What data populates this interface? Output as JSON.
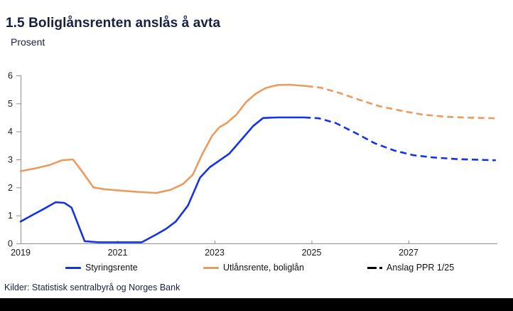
{
  "header": {
    "title": "1.5 Boliglånsrenten anslås å avta",
    "subtitle": "Prosent"
  },
  "source": "Kilder: Statistisk sentralbyrå og Norges Bank",
  "colors": {
    "policy_rate": "#1433e6",
    "lending_rate": "#ec9b5e",
    "forecast_marker": "#000000",
    "heading_text": "#172042",
    "axis": "#8f8f8f",
    "tick_label": "#1a1a1a"
  },
  "legend": [
    {
      "id": "styringsrente",
      "label": "Styringsrente",
      "marker": "solid-line",
      "color": "#1433e6"
    },
    {
      "id": "utlansrente-boliglan",
      "label": "Utlånsrente, boliglån",
      "marker": "solid-line",
      "color": "#ec9b5e"
    },
    {
      "id": "anslag-ppr",
      "label": "Anslag PPR 1/25",
      "marker": "dash-dot",
      "color": "#000000"
    }
  ],
  "chart_data": {
    "type": "line",
    "title": "1.5 Boliglånsrenten anslås å avta",
    "ylabel": "Prosent",
    "xlabel": "",
    "xlim": [
      2019,
      2028.85
    ],
    "ylim": [
      0,
      6
    ],
    "x_ticks": [
      2019,
      2021,
      2023,
      2025,
      2027
    ],
    "y_ticks": [
      0,
      1,
      2,
      3,
      4,
      5,
      6
    ],
    "grid": false,
    "legend_position": "bottom",
    "series": [
      {
        "id": "styringsrente",
        "name": "Styringsrente",
        "style": "solid",
        "color": "#1433e6",
        "points": [
          [
            2019.0,
            0.78
          ],
          [
            2019.25,
            1.02
          ],
          [
            2019.5,
            1.25
          ],
          [
            2019.72,
            1.47
          ],
          [
            2019.9,
            1.45
          ],
          [
            2020.05,
            1.28
          ],
          [
            2020.32,
            0.08
          ],
          [
            2020.6,
            0.04
          ],
          [
            2021.0,
            0.04
          ],
          [
            2021.5,
            0.04
          ],
          [
            2021.8,
            0.32
          ],
          [
            2022.0,
            0.52
          ],
          [
            2022.2,
            0.78
          ],
          [
            2022.45,
            1.35
          ],
          [
            2022.7,
            2.35
          ],
          [
            2022.9,
            2.72
          ],
          [
            2023.1,
            2.96
          ],
          [
            2023.3,
            3.2
          ],
          [
            2023.55,
            3.7
          ],
          [
            2023.8,
            4.2
          ],
          [
            2024.0,
            4.48
          ],
          [
            2024.3,
            4.5
          ],
          [
            2024.85,
            4.5
          ]
        ]
      },
      {
        "id": "styringsrente-anslag",
        "name": "Styringsrente (Anslag PPR 1/25)",
        "style": "dashed",
        "color": "#1433e6",
        "points": [
          [
            2024.85,
            4.5
          ],
          [
            2025.15,
            4.47
          ],
          [
            2025.5,
            4.3
          ],
          [
            2025.9,
            3.95
          ],
          [
            2026.3,
            3.58
          ],
          [
            2026.7,
            3.32
          ],
          [
            2027.1,
            3.15
          ],
          [
            2027.5,
            3.07
          ],
          [
            2028.0,
            3.01
          ],
          [
            2028.8,
            2.97
          ]
        ]
      },
      {
        "id": "utlansrente-boliglan",
        "name": "Utlånsrente, boliglån",
        "style": "solid",
        "color": "#ec9b5e",
        "points": [
          [
            2019.0,
            2.58
          ],
          [
            2019.3,
            2.68
          ],
          [
            2019.6,
            2.8
          ],
          [
            2019.85,
            2.97
          ],
          [
            2020.08,
            3.0
          ],
          [
            2020.3,
            2.5
          ],
          [
            2020.5,
            2.0
          ],
          [
            2020.75,
            1.93
          ],
          [
            2021.1,
            1.88
          ],
          [
            2021.5,
            1.83
          ],
          [
            2021.8,
            1.8
          ],
          [
            2022.1,
            1.92
          ],
          [
            2022.35,
            2.12
          ],
          [
            2022.55,
            2.45
          ],
          [
            2022.75,
            3.2
          ],
          [
            2022.95,
            3.85
          ],
          [
            2023.1,
            4.15
          ],
          [
            2023.25,
            4.3
          ],
          [
            2023.45,
            4.6
          ],
          [
            2023.65,
            5.05
          ],
          [
            2023.85,
            5.35
          ],
          [
            2024.05,
            5.55
          ],
          [
            2024.3,
            5.66
          ],
          [
            2024.55,
            5.67
          ],
          [
            2024.9,
            5.62
          ]
        ]
      },
      {
        "id": "utlansrente-boliglan-anslag",
        "name": "Utlånsrente, boliglån (Anslag PPR 1/25)",
        "style": "dashed",
        "color": "#ec9b5e",
        "points": [
          [
            2024.9,
            5.62
          ],
          [
            2025.2,
            5.56
          ],
          [
            2025.6,
            5.36
          ],
          [
            2026.0,
            5.12
          ],
          [
            2026.4,
            4.9
          ],
          [
            2026.9,
            4.72
          ],
          [
            2027.3,
            4.6
          ],
          [
            2027.8,
            4.52
          ],
          [
            2028.3,
            4.49
          ],
          [
            2028.8,
            4.47
          ]
        ]
      }
    ]
  }
}
